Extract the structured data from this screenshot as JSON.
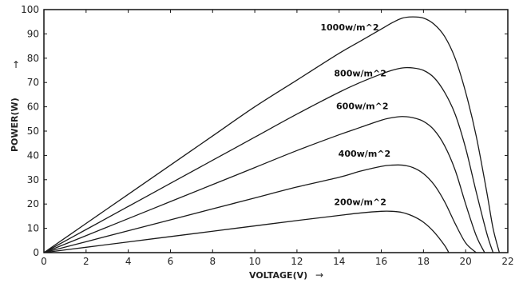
{
  "chart_data": {
    "type": "line",
    "title": "",
    "xlabel": "VOLTAGE(V)",
    "ylabel": "POWER(W)",
    "xlim": [
      0,
      22
    ],
    "ylim": [
      0,
      100
    ],
    "xticks": [
      0,
      2,
      4,
      6,
      8,
      10,
      12,
      14,
      16,
      18,
      20,
      22
    ],
    "yticks": [
      0,
      10,
      20,
      30,
      40,
      50,
      60,
      70,
      80,
      90,
      100
    ],
    "grid": false,
    "series": [
      {
        "name": "1000w/m^2",
        "x": [
          0,
          2,
          4,
          6,
          8,
          10,
          12,
          14,
          15,
          16,
          16.5,
          17,
          17.5,
          18,
          18.5,
          19,
          19.5,
          20,
          20.5,
          21,
          21.3,
          21.6
        ],
        "y": [
          0,
          12,
          24,
          36,
          48,
          60,
          71,
          82,
          87,
          92,
          94.5,
          96.5,
          97,
          96.5,
          94,
          89,
          80,
          66,
          48,
          25,
          10,
          0
        ]
      },
      {
        "name": "800w/m^2",
        "x": [
          0,
          2,
          4,
          6,
          8,
          10,
          12,
          14,
          15,
          16,
          16.5,
          17,
          17.5,
          18,
          18.5,
          19,
          19.5,
          20,
          20.5,
          21,
          21.3
        ],
        "y": [
          0,
          9.5,
          19,
          28.5,
          38,
          47.5,
          57,
          66,
          70,
          73.5,
          75,
          76,
          76,
          75,
          72,
          66,
          57,
          43,
          25,
          8,
          0
        ]
      },
      {
        "name": "600w/m^2",
        "x": [
          0,
          2,
          4,
          6,
          8,
          10,
          12,
          14,
          15,
          16,
          16.5,
          17,
          17.5,
          18,
          18.5,
          19,
          19.5,
          20,
          20.5,
          20.9
        ],
        "y": [
          0,
          7,
          14,
          21,
          28,
          35,
          42,
          48.5,
          51.5,
          54.5,
          55.5,
          56,
          55.5,
          54,
          50.5,
          44,
          34,
          20,
          7,
          0
        ]
      },
      {
        "name": "400w/m^2",
        "x": [
          0,
          2,
          4,
          6,
          8,
          10,
          12,
          14,
          15,
          16,
          16.5,
          17,
          17.5,
          18,
          18.5,
          19,
          19.5,
          20,
          20.5
        ],
        "y": [
          0,
          4.5,
          9,
          13.5,
          18,
          22.5,
          27,
          31,
          33.5,
          35.5,
          36,
          36,
          35,
          32.5,
          28,
          21,
          12,
          4,
          0
        ]
      },
      {
        "name": "200w/m^2",
        "x": [
          0,
          2,
          4,
          6,
          8,
          10,
          12,
          14,
          15,
          16,
          16.5,
          17,
          17.5,
          18,
          18.5,
          19,
          19.2
        ],
        "y": [
          0,
          2.2,
          4.4,
          6.6,
          8.8,
          11,
          13.2,
          15.3,
          16.3,
          17,
          17,
          16.5,
          15,
          12.5,
          8.5,
          3,
          0
        ]
      }
    ],
    "curve_labels": [
      "1000w/m^2",
      "800w/m^2",
      "600w/m^2",
      "400w/m^2",
      "200w/m^2"
    ],
    "label_positions": [
      [
        14.5,
        91.5
      ],
      [
        15.0,
        72.5
      ],
      [
        15.1,
        59.0
      ],
      [
        15.2,
        39.5
      ],
      [
        15.0,
        19.5
      ]
    ],
    "colors": {
      "line": "#1a1a1a",
      "axis": "#111111",
      "background": "#ffffff"
    },
    "arrow_glyphs": {
      "y": "↑",
      "x": "→"
    }
  }
}
